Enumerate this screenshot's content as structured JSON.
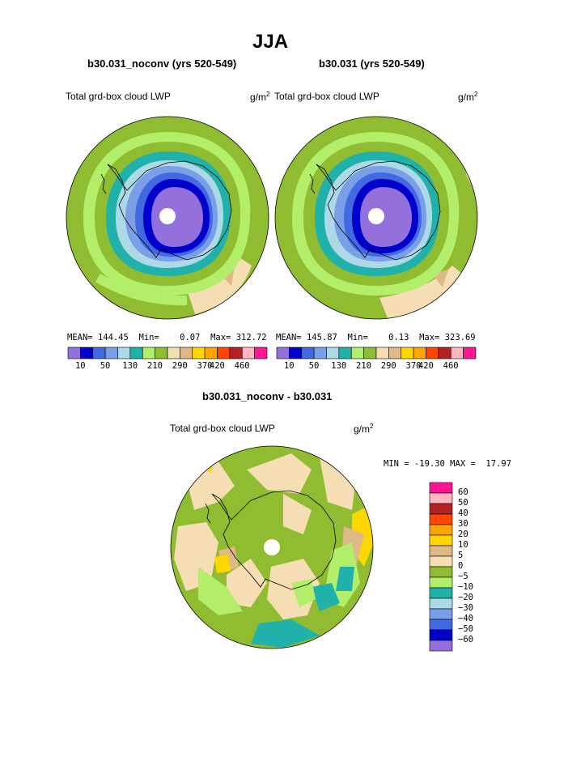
{
  "title": "JJA",
  "panels": [
    {
      "subtitle": "b30.031_noconv (yrs 520-549)",
      "left_label": "Total grd-box cloud LWP",
      "unit_base": "g/m",
      "unit_exp": "2",
      "stats": {
        "mean_label": "MEAN=",
        "mean": "144.45",
        "min_label": "Min=",
        "min": "0.07",
        "max_label": "Max=",
        "max": "312.72"
      }
    },
    {
      "subtitle": "b30.031 (yrs 520-549)",
      "left_label": "Total grd-box cloud LWP",
      "unit_base": "g/m",
      "unit_exp": "2",
      "stats": {
        "mean_label": "MEAN=",
        "mean": "145.87",
        "min_label": "Min=",
        "min": "0.13",
        "max_label": "Max=",
        "max": "323.69"
      }
    }
  ],
  "diff_panel": {
    "subtitle": "b30.031_noconv - b30.031",
    "left_label": "Total grd-box cloud LWP",
    "unit_base": "g/m",
    "unit_exp": "2",
    "minmax": "MIN = -19.30 MAX =  17.97"
  },
  "chart_data": [
    {
      "type": "heatmap",
      "title": "b30.031_noconv (yrs 520-549)",
      "projection": "south polar stereographic",
      "variable": "Total grd-box cloud LWP",
      "units": "g/m2",
      "mean": 144.45,
      "min": 0.07,
      "max": 312.72,
      "colorbar_levels": [
        10,
        30,
        50,
        90,
        130,
        170,
        210,
        250,
        290,
        330,
        370,
        390,
        420,
        440,
        460
      ],
      "colorbar_tick_labels": [
        "10",
        "50",
        "130",
        "210",
        "290",
        "370",
        "420",
        "460"
      ],
      "colors": [
        "#9370db",
        "#0000cd",
        "#4169e1",
        "#7b9ee8",
        "#add8e6",
        "#20b2aa",
        "#b3ee6a",
        "#8fbc30",
        "#f5deb3",
        "#deb887",
        "#ffd700",
        "#ffa500",
        "#ff4500",
        "#b22222",
        "#ffb6c1",
        "#ff1493"
      ]
    },
    {
      "type": "heatmap",
      "title": "b30.031 (yrs 520-549)",
      "projection": "south polar stereographic",
      "variable": "Total grd-box cloud LWP",
      "units": "g/m2",
      "mean": 145.87,
      "min": 0.13,
      "max": 323.69,
      "colorbar_levels": [
        10,
        30,
        50,
        90,
        130,
        170,
        210,
        250,
        290,
        330,
        370,
        390,
        420,
        440,
        460
      ],
      "colorbar_tick_labels": [
        "10",
        "50",
        "130",
        "210",
        "290",
        "370",
        "420",
        "460"
      ],
      "colors": [
        "#9370db",
        "#0000cd",
        "#4169e1",
        "#7b9ee8",
        "#add8e6",
        "#20b2aa",
        "#b3ee6a",
        "#8fbc30",
        "#f5deb3",
        "#deb887",
        "#ffd700",
        "#ffa500",
        "#ff4500",
        "#b22222",
        "#ffb6c1",
        "#ff1493"
      ]
    },
    {
      "type": "heatmap",
      "title": "b30.031_noconv - b30.031",
      "projection": "south polar stereographic",
      "variable": "Total grd-box cloud LWP",
      "units": "g/m2",
      "min": -19.3,
      "max": 17.97,
      "colorbar_tick_labels": [
        "60",
        "50",
        "40",
        "30",
        "20",
        "10",
        "5",
        "0",
        "−5",
        "−10",
        "−20",
        "−30",
        "−40",
        "−50",
        "−60"
      ],
      "colors": [
        "#ff1493",
        "#ffb6c1",
        "#b22222",
        "#ff4500",
        "#ffa500",
        "#ffd700",
        "#deb887",
        "#f5deb3",
        "#8fbc30",
        "#b3ee6a",
        "#20b2aa",
        "#add8e6",
        "#7b9ee8",
        "#4169e1",
        "#0000cd",
        "#9370db"
      ]
    }
  ]
}
